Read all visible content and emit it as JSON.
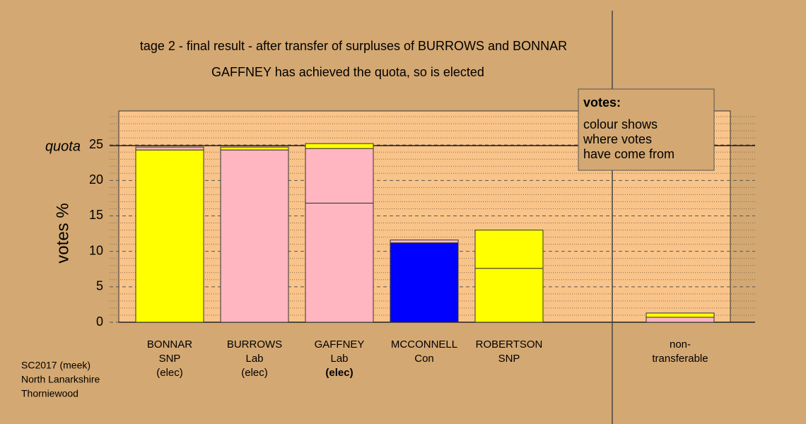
{
  "chart_data": {
    "type": "stacked_bar",
    "title": "tage 2 - final result - after transfer of surpluses of BURROWS and BONNAR",
    "subtitle": "GAFFNEY has achieved the quota, so is elected",
    "y_label": "votes %",
    "ylim": [
      0,
      29.8
    ],
    "yticks": [
      0,
      5,
      10,
      15,
      20,
      25
    ],
    "minor_yticks": [
      1,
      2,
      3,
      4,
      6,
      7,
      8,
      9,
      11,
      12,
      13,
      14,
      16,
      17,
      18,
      19,
      21,
      22,
      23,
      24,
      26,
      27,
      28,
      29
    ],
    "quota": {
      "label": "quota",
      "value": 24.9
    },
    "categories": [
      {
        "lines": [
          "BONNAR",
          "SNP",
          "(elec)"
        ]
      },
      {
        "lines": [
          "BURROWS",
          "Lab",
          "(elec)"
        ]
      },
      {
        "lines": [
          "GAFFNEY",
          "Lab",
          "(elec)"
        ],
        "bold": true
      },
      {
        "lines": [
          "MCCONNELL",
          "Con"
        ]
      },
      {
        "lines": [
          "ROBERTSON",
          "SNP"
        ]
      },
      {
        "lines": [
          "non-",
          "transferable"
        ]
      }
    ],
    "segments": [
      [
        {
          "value": 24.3,
          "color": "#ffff00"
        },
        {
          "value": 0.4,
          "color": "#ffb6c1"
        }
      ],
      [
        {
          "value": 24.3,
          "color": "#ffb6c1"
        },
        {
          "value": 0.4,
          "color": "#ffff00"
        }
      ],
      [
        {
          "value": 16.8,
          "color": "#ffb6c1"
        },
        {
          "value": 7.7,
          "color": "#ffb6c1"
        },
        {
          "value": 0.7,
          "color": "#ffff00"
        }
      ],
      [
        {
          "value": 11.2,
          "color": "#0000ff"
        },
        {
          "value": 0.4,
          "color": "#ffb6c1"
        }
      ],
      [
        {
          "value": 7.6,
          "color": "#ffff00"
        },
        {
          "value": 5.4,
          "color": "#ffff00"
        }
      ],
      [
        {
          "value": 0.7,
          "color": "#ffb6c1"
        },
        {
          "value": 0.6,
          "color": "#ffff00"
        }
      ]
    ]
  },
  "note": {
    "title": "votes:",
    "lines": [
      "colour shows",
      "where votes",
      "have come from"
    ]
  },
  "footer": [
    "SC2017 (meek)",
    "North Lanarkshire",
    "Thorniewood"
  ]
}
